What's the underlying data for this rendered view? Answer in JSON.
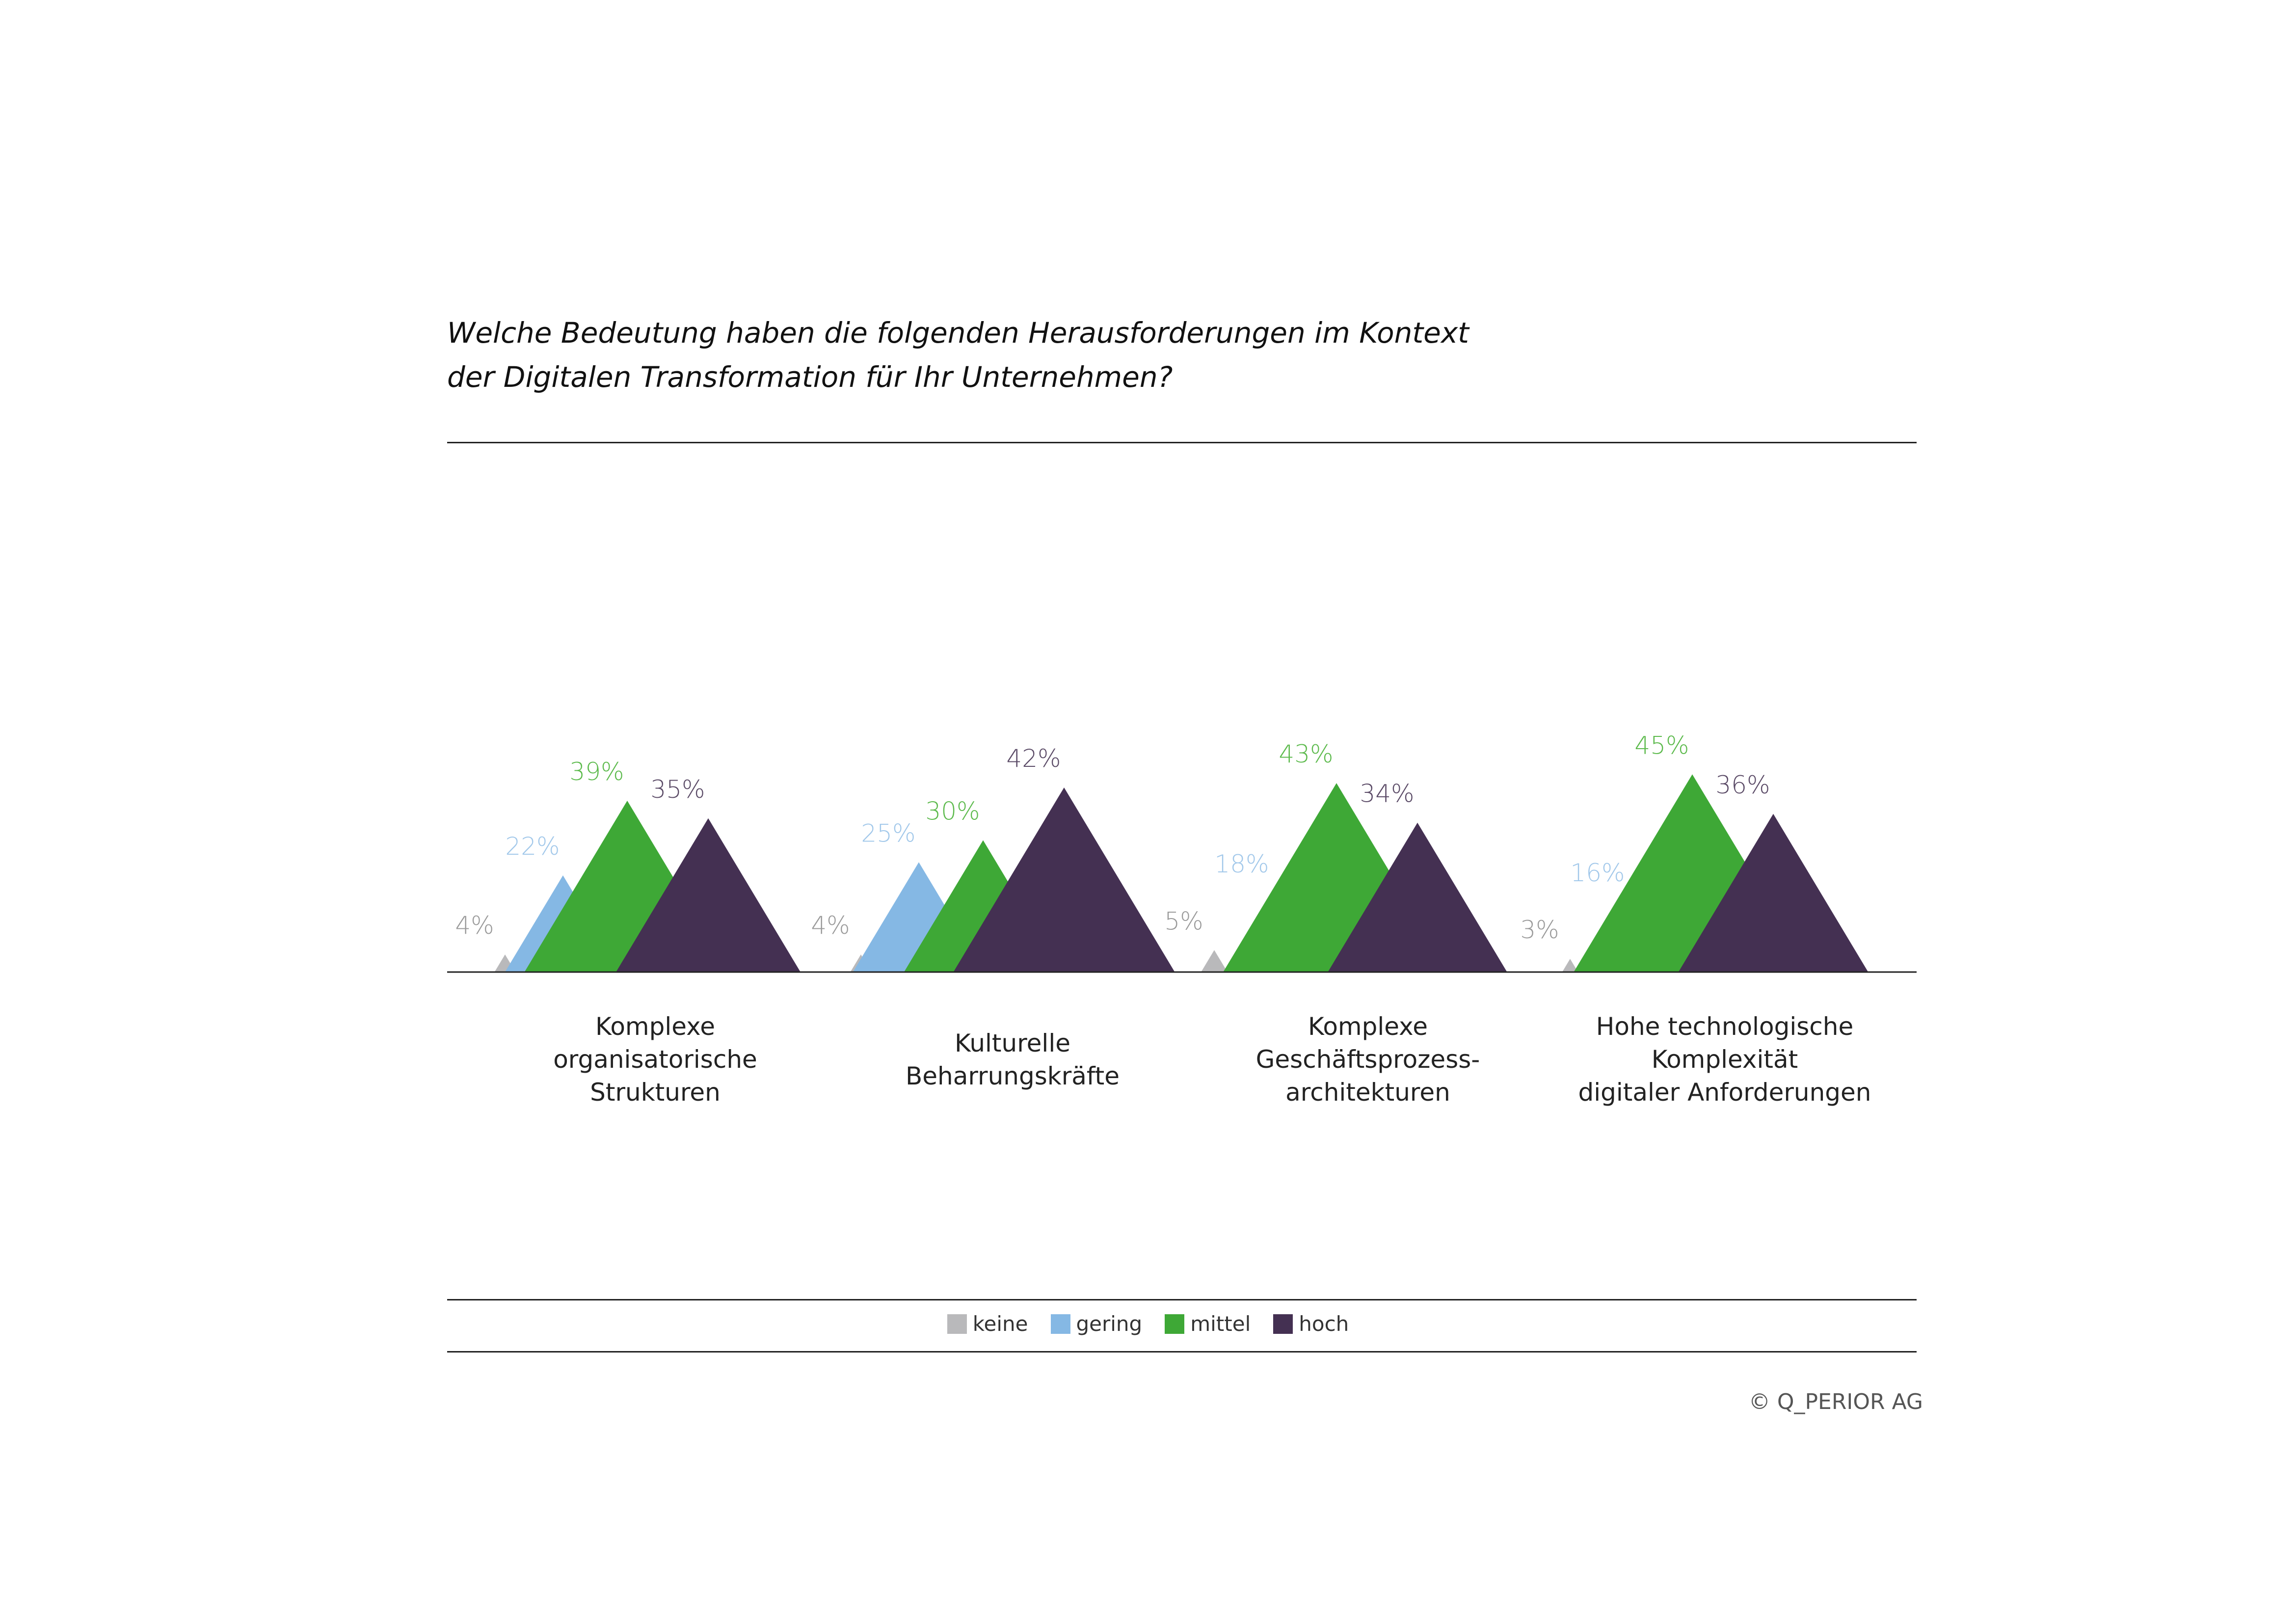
{
  "title_lines": [
    "Welche Bedeutung haben die folgenden Herausforderungen im Kontext",
    "der Digitalen Transformation für Ihr Unternehmen?"
  ],
  "copyright": "©  Q_PERIOR AG",
  "colors": {
    "keine": "#b9b9bb",
    "gering": "#85b8e4",
    "mittel": "#3ea836",
    "hoch": "#443052"
  },
  "label_colors": {
    "keine": "#9a9a9a",
    "gering": "#a2c8ea",
    "mittel": "#5cba4c",
    "hoch": "#5a4a66"
  },
  "chart_data": {
    "type": "area",
    "categories": [
      [
        "Komplexe",
        "organisatorische",
        "Strukturen"
      ],
      [
        "Kulturelle",
        "Beharrungskräfte"
      ],
      [
        "Komplexe",
        "Geschäftsprozess-",
        "architekturen"
      ],
      [
        "Hohe technologische",
        "Komplexität",
        "digitaler Anforderungen"
      ]
    ],
    "series": [
      {
        "name": "keine",
        "values": [
          4,
          4,
          5,
          3
        ]
      },
      {
        "name": "gering",
        "values": [
          22,
          25,
          18,
          16
        ]
      },
      {
        "name": "mittel",
        "values": [
          39,
          30,
          43,
          45
        ]
      },
      {
        "name": "hoch",
        "values": [
          35,
          42,
          34,
          36
        ]
      }
    ],
    "value_suffix": "%",
    "legend_position": "bottom-center",
    "grid": false
  }
}
